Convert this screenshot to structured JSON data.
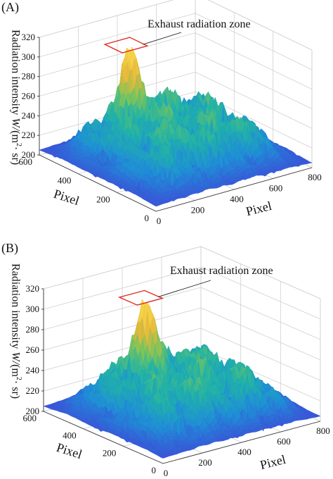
{
  "chart_data": [
    {
      "type": "surface3d",
      "panel_label": "(A)",
      "annotation": "Exhaust radiation zone",
      "zlabel": "Radiation intensity",
      "zlabel_unit_prefix": "W/",
      "zlabel_unit_base": "(m",
      "zlabel_unit_exp": "2",
      "zlabel_unit_suffix": "· sr)",
      "xlabel": "Pixel",
      "ylabel": "Pixel",
      "x_ticks": [
        "0",
        "200",
        "400",
        "600",
        "800"
      ],
      "y_ticks": [
        "0",
        "200",
        "400",
        "600"
      ],
      "z_ticks": [
        "200",
        "220",
        "240",
        "260",
        "280",
        "300",
        "320"
      ],
      "x_range": [
        0,
        800
      ],
      "y_range": [
        0,
        600
      ],
      "zlim": [
        200,
        320
      ],
      "peak_value": 305,
      "colormap": [
        "#3a4fd8",
        "#1e8fd6",
        "#21b3a6",
        "#7cc45a",
        "#e8b83a",
        "#f6d64a"
      ]
    },
    {
      "type": "surface3d",
      "panel_label": "(B)",
      "annotation": "Exhaust radiation zone",
      "zlabel": "Radiation intensity",
      "zlabel_unit_prefix": "W/",
      "zlabel_unit_base": "(m",
      "zlabel_unit_exp": "2",
      "zlabel_unit_suffix": "· sr)",
      "xlabel": "Pixel",
      "ylabel": "Pixel",
      "x_ticks": [
        "0",
        "200",
        "400",
        "600",
        "800"
      ],
      "y_ticks": [
        "0",
        "200",
        "400",
        "600"
      ],
      "z_ticks": [
        "200",
        "220",
        "240",
        "260",
        "280",
        "300",
        "320"
      ],
      "x_range": [
        0,
        800
      ],
      "y_range": [
        0,
        600
      ],
      "zlim": [
        200,
        320
      ],
      "peak_value": 305,
      "colormap": [
        "#3a4fd8",
        "#1e8fd6",
        "#21b3a6",
        "#7cc45a",
        "#e8b83a",
        "#f6d64a"
      ]
    }
  ]
}
